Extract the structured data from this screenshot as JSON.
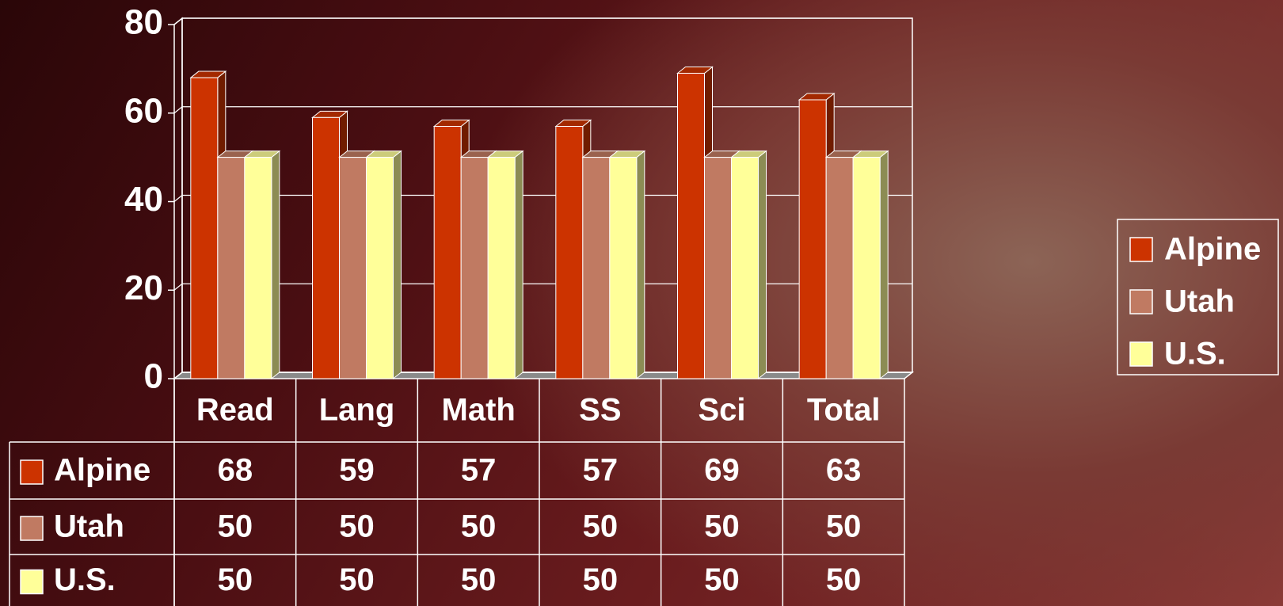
{
  "chart_data": {
    "type": "bar",
    "categories": [
      "Read",
      "Lang",
      "Math",
      "SS",
      "Sci",
      "Total"
    ],
    "series": [
      {
        "name": "Alpine",
        "color": "#cc3300",
        "values": [
          68,
          59,
          57,
          57,
          69,
          63
        ]
      },
      {
        "name": "Utah",
        "color": "#c07a62",
        "values": [
          50,
          50,
          50,
          50,
          50,
          50
        ]
      },
      {
        "name": "U.S.",
        "color": "#ffff99",
        "values": [
          50,
          50,
          50,
          50,
          50,
          50
        ]
      }
    ],
    "ylim": [
      0,
      80
    ],
    "yticks": [
      0,
      20,
      40,
      60,
      80
    ],
    "grid": true,
    "legend": "right",
    "data_table": true
  }
}
